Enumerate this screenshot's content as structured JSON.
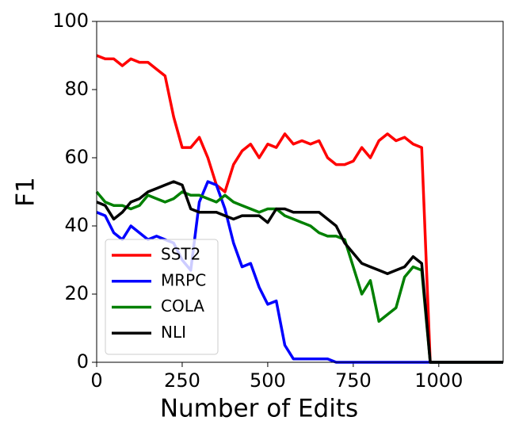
{
  "chart_data": {
    "type": "line",
    "x_label": "Number of Edits",
    "y_label": "F1",
    "x": [
      0,
      25,
      50,
      75,
      100,
      125,
      150,
      175,
      200,
      225,
      250,
      275,
      300,
      325,
      350,
      375,
      400,
      425,
      450,
      475,
      500,
      525,
      550,
      575,
      600,
      625,
      650,
      675,
      700,
      725,
      750,
      775,
      800,
      825,
      850,
      875,
      900,
      925,
      950,
      975,
      1000,
      1025,
      1050,
      1075,
      1100,
      1125,
      1150,
      1175,
      1188
    ],
    "series": [
      {
        "name": "SST2",
        "color": "#ff0000",
        "values": [
          90,
          89,
          89,
          87,
          89,
          88,
          88,
          86,
          84,
          72,
          63,
          63,
          66,
          60,
          52,
          50,
          58,
          62,
          64,
          60,
          64,
          63,
          67,
          64,
          65,
          64,
          65,
          60,
          58,
          58,
          59,
          63,
          60,
          65,
          67,
          65,
          66,
          64,
          63,
          0,
          0,
          0,
          0,
          0,
          0,
          0,
          0,
          0,
          0
        ]
      },
      {
        "name": "MRPC",
        "color": "#0000ff",
        "values": [
          44,
          43,
          38,
          36,
          40,
          38,
          36,
          37,
          36,
          35,
          30,
          27,
          47,
          53,
          52,
          45,
          35,
          28,
          29,
          22,
          17,
          18,
          5,
          1,
          1,
          1,
          1,
          1,
          0,
          0,
          0,
          0,
          0,
          0,
          0,
          0,
          0,
          0,
          0,
          0,
          0,
          0,
          0,
          0,
          0,
          0,
          0,
          0,
          0
        ]
      },
      {
        "name": "COLA",
        "color": "#008000",
        "values": [
          50,
          47,
          46,
          46,
          45,
          46,
          49,
          48,
          47,
          48,
          50,
          49,
          49,
          48,
          47,
          49,
          47,
          46,
          45,
          44,
          45,
          45,
          43,
          42,
          41,
          40,
          38,
          37,
          37,
          36,
          28,
          20,
          24,
          12,
          14,
          16,
          25,
          28,
          27,
          0,
          0,
          0,
          0,
          0,
          0,
          0,
          0,
          0,
          0
        ]
      },
      {
        "name": "NLI",
        "color": "#000000",
        "values": [
          47,
          46,
          42,
          44,
          47,
          48,
          50,
          51,
          52,
          53,
          52,
          45,
          44,
          44,
          44,
          43,
          42,
          43,
          43,
          43,
          41,
          45,
          45,
          44,
          44,
          44,
          44,
          42,
          40,
          35,
          32,
          29,
          28,
          27,
          26,
          27,
          28,
          31,
          29,
          0,
          0,
          0,
          0,
          0,
          0,
          0,
          0,
          0,
          0
        ]
      }
    ],
    "xlim": [
      0,
      1188
    ],
    "ylim": [
      0,
      100
    ],
    "xticks": [
      0,
      250,
      500,
      750,
      1000
    ],
    "yticks": [
      0,
      20,
      40,
      60,
      80,
      100
    ],
    "legend": "lower left"
  }
}
